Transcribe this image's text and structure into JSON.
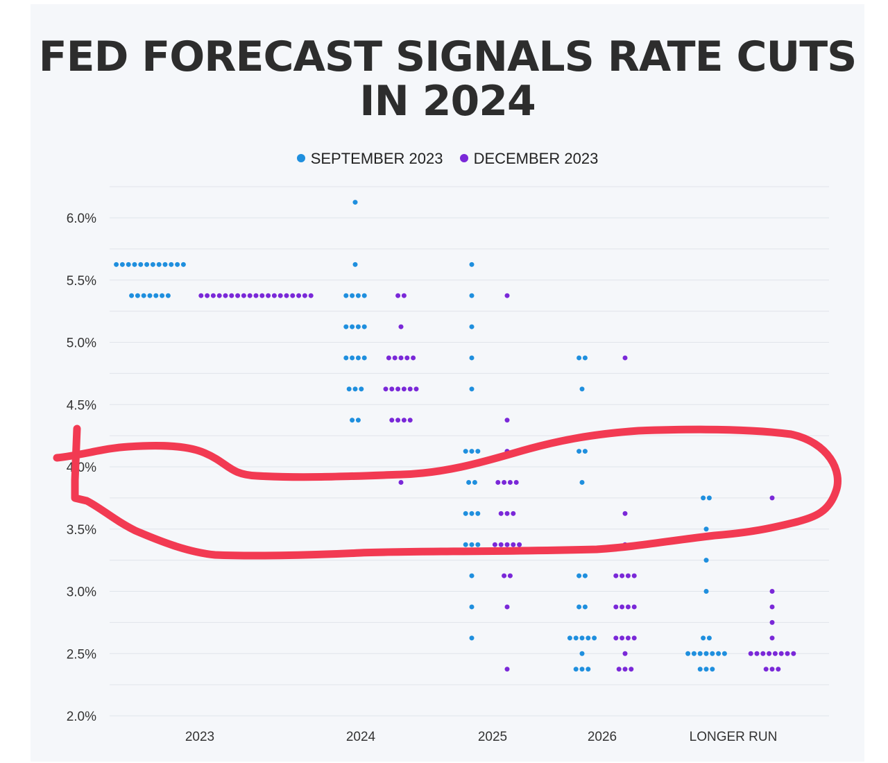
{
  "title": "FED FORECAST SIGNALS RATE CUTS IN 2024",
  "legend": [
    {
      "label": "SEPTEMBER 2023",
      "color": "#1f8fde"
    },
    {
      "label": "DECEMBER 2023",
      "color": "#7a28d8"
    }
  ],
  "annotation": {
    "type": "hand-drawn-loop",
    "color": "#f23a52"
  },
  "chart_data": {
    "type": "scatter",
    "title": "FED FORECAST SIGNALS RATE CUTS IN 2024",
    "categories": [
      "2023",
      "2024",
      "2025",
      "2026",
      "LONGER RUN"
    ],
    "y_ticks": [
      "6.0%",
      "5.5%",
      "5.0%",
      "4.5%",
      "4.0%",
      "3.5%",
      "3.0%",
      "2.5%",
      "2.0%"
    ],
    "ylim": [
      2.0,
      6.25
    ],
    "grid": true,
    "legend_position": "top-center",
    "series": [
      {
        "name": "SEPTEMBER 2023",
        "color": "#1f8fde",
        "points": [
          {
            "category": "2023",
            "rates": [
              {
                "rate": 5.625,
                "count": 12
              },
              {
                "rate": 5.375,
                "count": 7
              }
            ]
          },
          {
            "category": "2024",
            "rates": [
              {
                "rate": 6.125,
                "count": 1
              },
              {
                "rate": 5.625,
                "count": 1
              },
              {
                "rate": 5.375,
                "count": 4
              },
              {
                "rate": 5.125,
                "count": 4
              },
              {
                "rate": 4.875,
                "count": 4
              },
              {
                "rate": 4.625,
                "count": 3
              },
              {
                "rate": 4.375,
                "count": 2
              }
            ]
          },
          {
            "category": "2025",
            "rates": [
              {
                "rate": 5.625,
                "count": 1
              },
              {
                "rate": 5.375,
                "count": 1
              },
              {
                "rate": 5.125,
                "count": 1
              },
              {
                "rate": 4.875,
                "count": 1
              },
              {
                "rate": 4.625,
                "count": 1
              },
              {
                "rate": 4.125,
                "count": 3
              },
              {
                "rate": 3.875,
                "count": 2
              },
              {
                "rate": 3.625,
                "count": 3
              },
              {
                "rate": 3.375,
                "count": 3
              },
              {
                "rate": 3.125,
                "count": 1
              },
              {
                "rate": 2.875,
                "count": 1
              },
              {
                "rate": 2.625,
                "count": 1
              }
            ]
          },
          {
            "category": "2026",
            "rates": [
              {
                "rate": 4.875,
                "count": 2
              },
              {
                "rate": 4.625,
                "count": 1
              },
              {
                "rate": 4.125,
                "count": 2
              },
              {
                "rate": 3.875,
                "count": 1
              },
              {
                "rate": 3.125,
                "count": 2
              },
              {
                "rate": 2.875,
                "count": 2
              },
              {
                "rate": 2.625,
                "count": 5
              },
              {
                "rate": 2.5,
                "count": 1
              },
              {
                "rate": 2.375,
                "count": 3
              }
            ]
          },
          {
            "category": "LONGER RUN",
            "rates": [
              {
                "rate": 3.75,
                "count": 2
              },
              {
                "rate": 3.5,
                "count": 1
              },
              {
                "rate": 3.25,
                "count": 1
              },
              {
                "rate": 3.0,
                "count": 1
              },
              {
                "rate": 2.625,
                "count": 2
              },
              {
                "rate": 2.5,
                "count": 7
              },
              {
                "rate": 2.375,
                "count": 3
              }
            ]
          }
        ]
      },
      {
        "name": "DECEMBER 2023",
        "color": "#7a28d8",
        "points": [
          {
            "category": "2023",
            "rates": [
              {
                "rate": 5.375,
                "count": 19
              }
            ]
          },
          {
            "category": "2024",
            "rates": [
              {
                "rate": 5.375,
                "count": 2
              },
              {
                "rate": 5.125,
                "count": 1
              },
              {
                "rate": 4.875,
                "count": 5
              },
              {
                "rate": 4.625,
                "count": 6
              },
              {
                "rate": 4.375,
                "count": 4
              },
              {
                "rate": 3.875,
                "count": 1
              }
            ]
          },
          {
            "category": "2025",
            "rates": [
              {
                "rate": 5.375,
                "count": 1
              },
              {
                "rate": 4.375,
                "count": 1
              },
              {
                "rate": 4.125,
                "count": 1
              },
              {
                "rate": 3.875,
                "count": 4
              },
              {
                "rate": 3.625,
                "count": 3
              },
              {
                "rate": 3.375,
                "count": 5
              },
              {
                "rate": 3.125,
                "count": 2
              },
              {
                "rate": 2.875,
                "count": 1
              },
              {
                "rate": 2.375,
                "count": 1
              }
            ]
          },
          {
            "category": "2026",
            "rates": [
              {
                "rate": 4.875,
                "count": 1
              },
              {
                "rate": 3.625,
                "count": 1
              },
              {
                "rate": 3.375,
                "count": 1
              },
              {
                "rate": 3.125,
                "count": 4
              },
              {
                "rate": 2.875,
                "count": 4
              },
              {
                "rate": 2.625,
                "count": 4
              },
              {
                "rate": 2.5,
                "count": 1
              },
              {
                "rate": 2.375,
                "count": 3
              }
            ]
          },
          {
            "category": "LONGER RUN",
            "rates": [
              {
                "rate": 3.75,
                "count": 1
              },
              {
                "rate": 3.0,
                "count": 1
              },
              {
                "rate": 2.875,
                "count": 1
              },
              {
                "rate": 2.75,
                "count": 1
              },
              {
                "rate": 2.625,
                "count": 1
              },
              {
                "rate": 2.5,
                "count": 8
              },
              {
                "rate": 2.375,
                "count": 3
              }
            ]
          }
        ]
      }
    ]
  }
}
